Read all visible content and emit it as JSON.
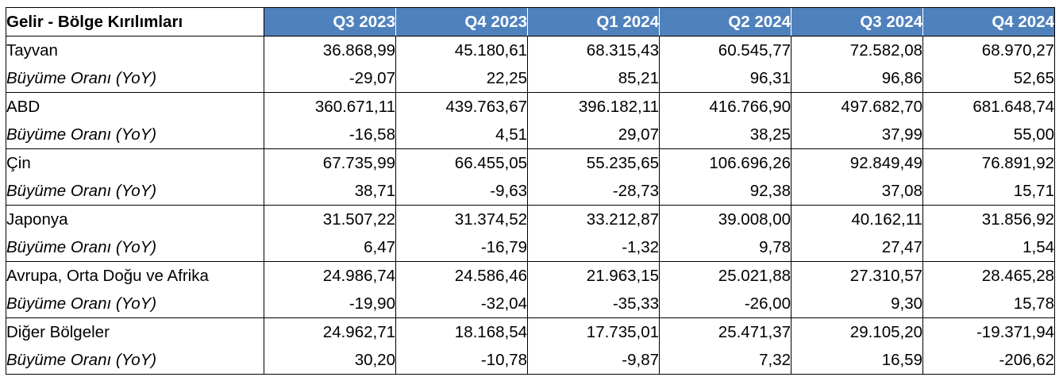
{
  "table": {
    "title": "Gelir - Bölge Kırılımları",
    "columns": [
      "Q3 2023",
      "Q4 2023",
      "Q1 2024",
      "Q2 2024",
      "Q3 2024",
      "Q4 2024"
    ],
    "regions": [
      {
        "name": "Tayvan",
        "values": [
          "36.868,99",
          "45.180,61",
          "68.315,43",
          "60.545,77",
          "72.582,08",
          "68.970,27"
        ],
        "growth_label": "Büyüme Oranı (YoY)",
        "growth": [
          "-29,07",
          "22,25",
          "85,21",
          "96,31",
          "96,86",
          "52,65"
        ]
      },
      {
        "name": "ABD",
        "values": [
          "360.671,11",
          "439.763,67",
          "396.182,11",
          "416.766,90",
          "497.682,70",
          "681.648,74"
        ],
        "growth_label": "Büyüme Oranı (YoY)",
        "growth": [
          "-16,58",
          "4,51",
          "29,07",
          "38,25",
          "37,99",
          "55,00"
        ]
      },
      {
        "name": "Çin",
        "values": [
          "67.735,99",
          "66.455,05",
          "55.235,65",
          "106.696,26",
          "92.849,49",
          "76.891,92"
        ],
        "growth_label": "Büyüme Oranı (YoY)",
        "growth": [
          "38,71",
          "-9,63",
          "-28,73",
          "92,38",
          "37,08",
          "15,71"
        ]
      },
      {
        "name": "Japonya",
        "values": [
          "31.507,22",
          "31.374,52",
          "33.212,87",
          "39.008,00",
          "40.162,11",
          "31.856,92"
        ],
        "growth_label": "Büyüme Oranı (YoY)",
        "growth": [
          "6,47",
          "-16,79",
          "-1,32",
          "9,78",
          "27,47",
          "1,54"
        ]
      },
      {
        "name": "Avrupa, Orta Doğu ve Afrika",
        "values": [
          "24.986,74",
          "24.586,46",
          "21.963,15",
          "25.021,88",
          "27.310,57",
          "28.465,28"
        ],
        "growth_label": "Büyüme Oranı (YoY)",
        "growth": [
          "-19,90",
          "-32,04",
          "-35,33",
          "-26,00",
          "9,30",
          "15,78"
        ]
      },
      {
        "name": "Diğer Bölgeler",
        "values": [
          "24.962,71",
          "18.168,54",
          "17.735,01",
          "25.471,37",
          "29.105,20",
          "-19.371,94"
        ],
        "growth_label": "Büyüme Oranı (YoY)",
        "growth": [
          "30,20",
          "-10,78",
          "-9,87",
          "7,32",
          "16,59",
          "-206,62"
        ]
      }
    ],
    "header_color": "#4f81bd"
  }
}
